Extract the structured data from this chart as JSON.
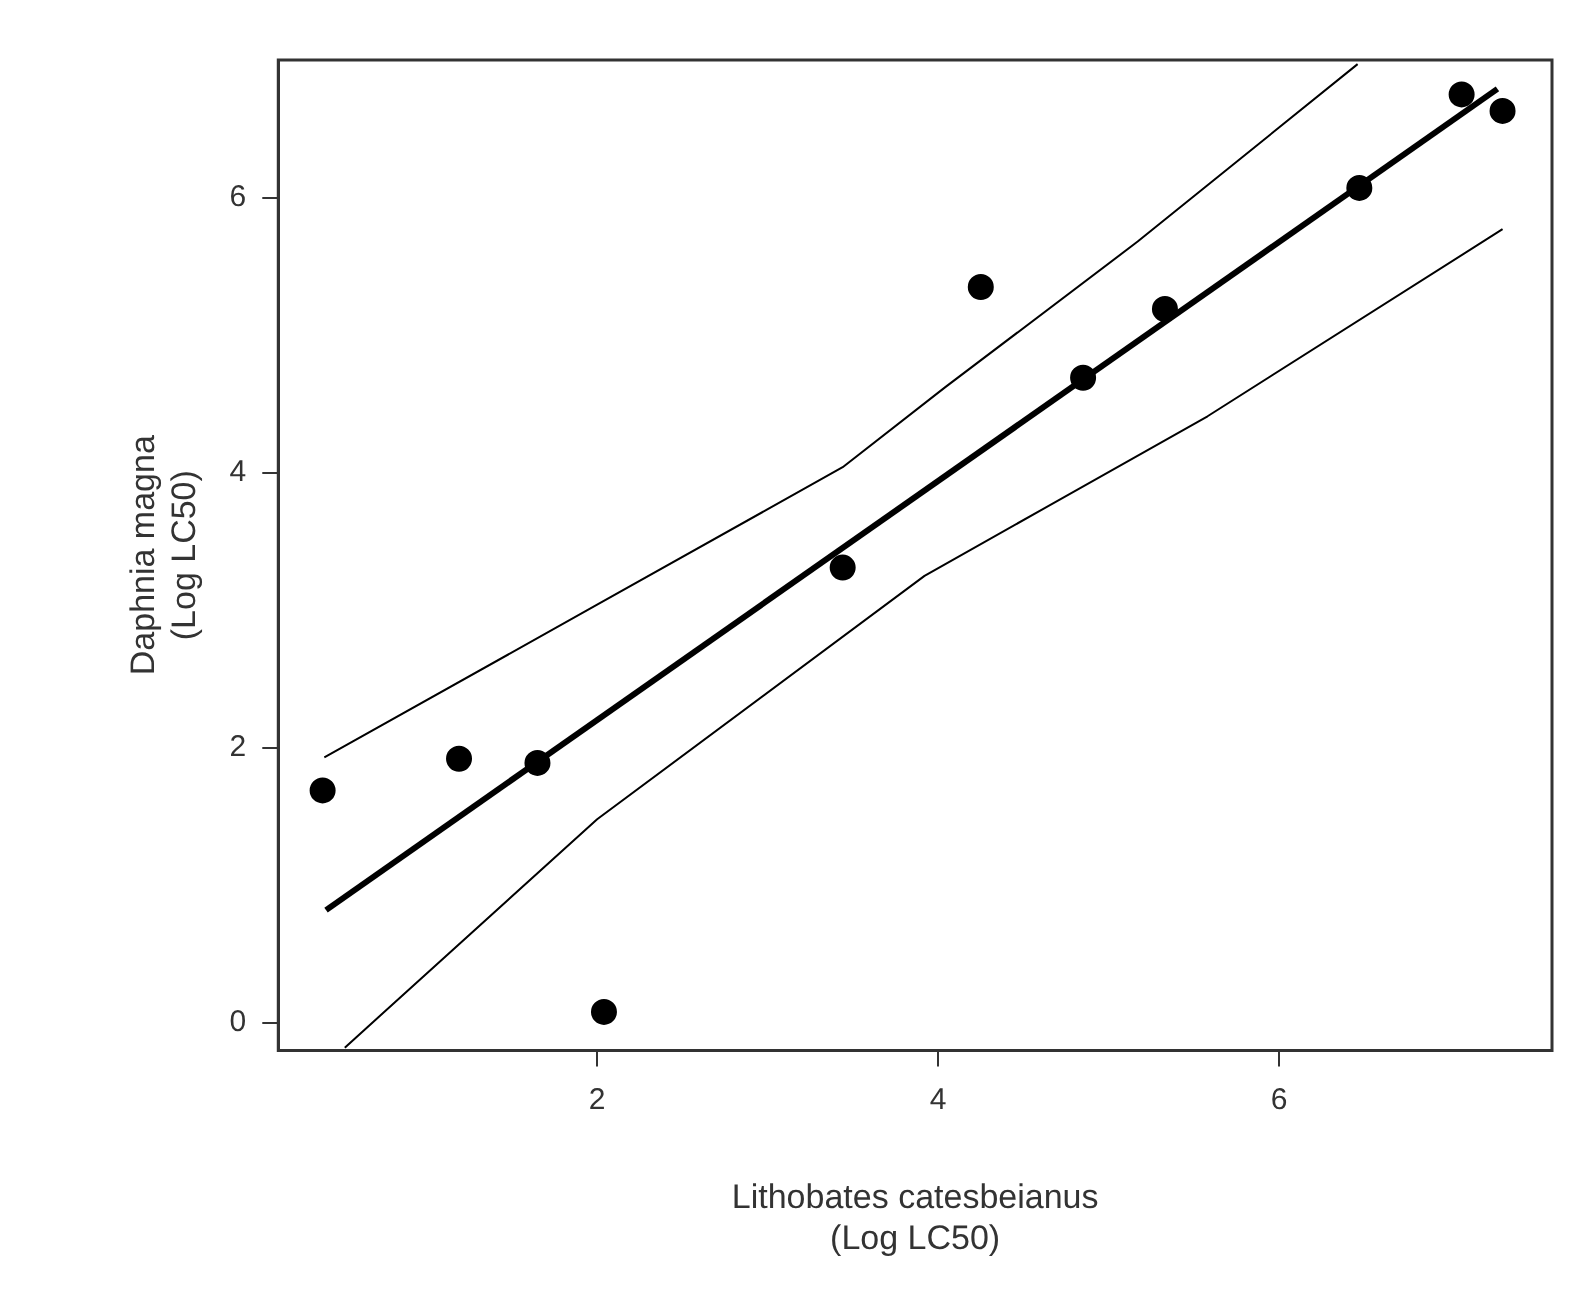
{
  "chart_data": {
    "type": "scatter",
    "xlabel": "Lithobates catesbeianus\n(Log LC50)",
    "ylabel": "Daphnia magna\n(Log LC50)",
    "xlim": [
      0.13,
      7.6
    ],
    "xticks": [
      2,
      4,
      6
    ],
    "ylim": [
      -0.2,
      7.0
    ],
    "yticks": [
      0,
      2,
      4,
      6
    ],
    "grid": false,
    "legend": false,
    "marker": "circle",
    "series": [
      {
        "color": "#000000",
        "x": [
          0.39,
          1.19,
          1.65,
          2.04,
          3.44,
          4.25,
          4.85,
          5.33,
          6.47,
          7.07,
          7.31
        ],
        "values": [
          1.69,
          1.92,
          1.89,
          0.08,
          3.31,
          5.35,
          4.69,
          5.19,
          6.07,
          6.75,
          6.63
        ]
      },
      {
        "type": "line",
        "color": "#000000",
        "marker": "none",
        "x": [
          0.41,
          7.28
        ],
        "values": [
          0.82,
          6.79
        ]
      },
      {
        "type": "line",
        "color": "#000000",
        "marker": "none",
        "x": [
          0.4,
          2.0,
          3.44,
          4.04,
          5.17,
          6.46
        ],
        "values": [
          1.93,
          3.04,
          4.04,
          4.62,
          5.68,
          6.97
        ]
      },
      {
        "type": "line",
        "color": "#000000",
        "marker": "none",
        "x": [
          0.52,
          2.0,
          3.92,
          5.58,
          7.31
        ],
        "values": [
          -0.18,
          1.48,
          3.25,
          4.41,
          5.77
        ]
      }
    ]
  }
}
